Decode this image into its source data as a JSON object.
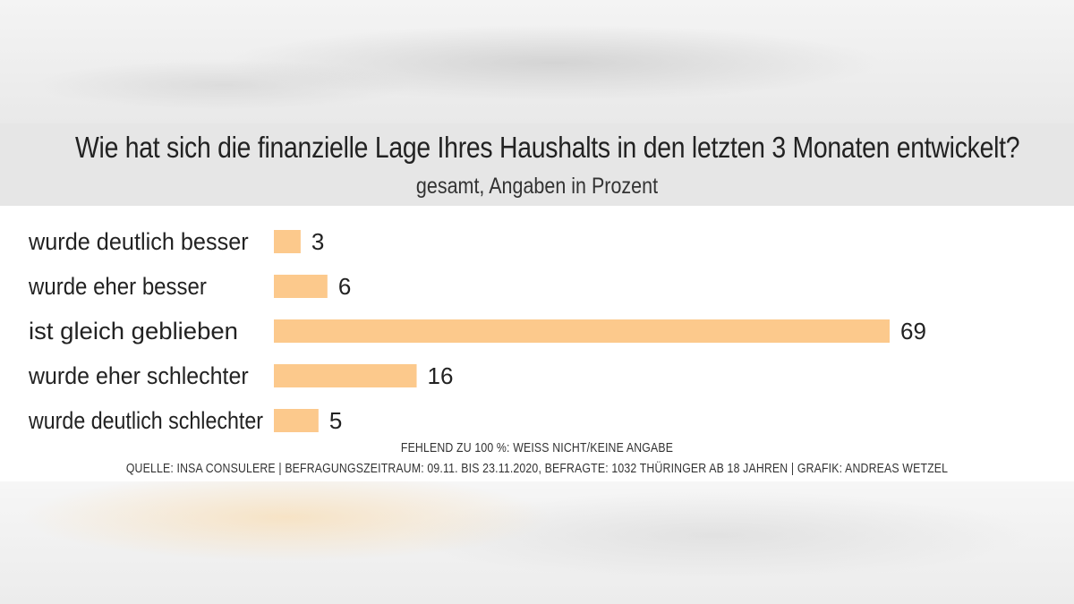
{
  "chart_data": {
    "type": "bar",
    "orientation": "horizontal",
    "title": "Wie hat sich die finanzielle Lage Ihres Haushalts in den letzten 3 Monaten entwickelt?",
    "subtitle": "gesamt, Angaben in Prozent",
    "categories": [
      "wurde deutlich besser",
      "wurde eher besser",
      "ist gleich geblieben",
      "wurde eher schlechter",
      "wurde deutlich schlechter"
    ],
    "values": [
      3,
      6,
      69,
      16,
      5
    ],
    "bar_color": "#fcc98c",
    "xlim": [
      0,
      100
    ]
  },
  "notes": {
    "missing": "FEHLEND ZU 100 %: WEISS NICHT/KEINE ANGABE",
    "source": "QUELLE: INSA CONSULERE | BEFRAGUNGSZEITRAUM: 09.11. BIS 23.11.2020, BEFRAGTE: 1032 THÜRINGER AB 18 JAHREN | GRAFIK: ANDREAS WETZEL"
  },
  "colors": {
    "title_band": "#e6e6e6",
    "panel": "#ffffff",
    "text": "#222222"
  }
}
